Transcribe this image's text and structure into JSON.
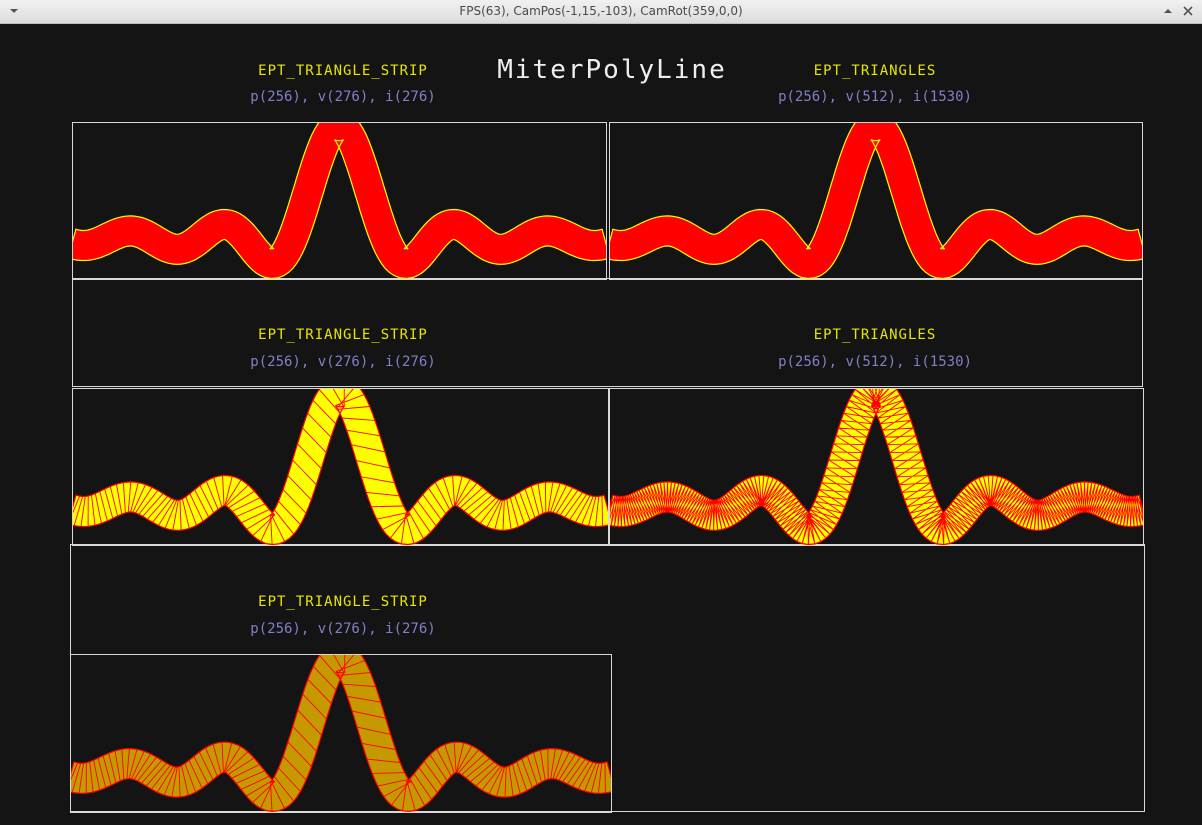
{
  "window": {
    "title": "FPS(63), CamPos(-1,15,-103), CamRot(359,0,0)",
    "menu_icon": "chevron-down-icon",
    "maximize_icon": "maximize-icon",
    "close_icon": "close-icon"
  },
  "scene": {
    "heading": "MiterPolyLine",
    "panels": [
      {
        "mode": "EPT_TRIANGLE_STRIP",
        "stats": "p(256), v(276), i(276)",
        "style": "solid"
      },
      {
        "mode": "EPT_TRIANGLES",
        "stats": "p(256), v(512), i(1530)",
        "style": "solid"
      },
      {
        "mode": "EPT_TRIANGLE_STRIP",
        "stats": "p(256), v(276), i(276)",
        "style": "wire"
      },
      {
        "mode": "EPT_TRIANGLES",
        "stats": "p(256), v(512), i(1530)",
        "style": "wire"
      },
      {
        "mode": "EPT_TRIANGLE_STRIP",
        "stats": "p(256), v(276), i(276)",
        "style": "dark"
      }
    ]
  },
  "colors": {
    "background": "#141414",
    "label_yellow": "#e6e600",
    "label_blue": "#8080c8",
    "heading_white": "#eeeeee",
    "frame": "#d8d8d8",
    "red": "#ff0000",
    "yellow": "#ffff00",
    "dark_yellow": "#c49a00"
  }
}
